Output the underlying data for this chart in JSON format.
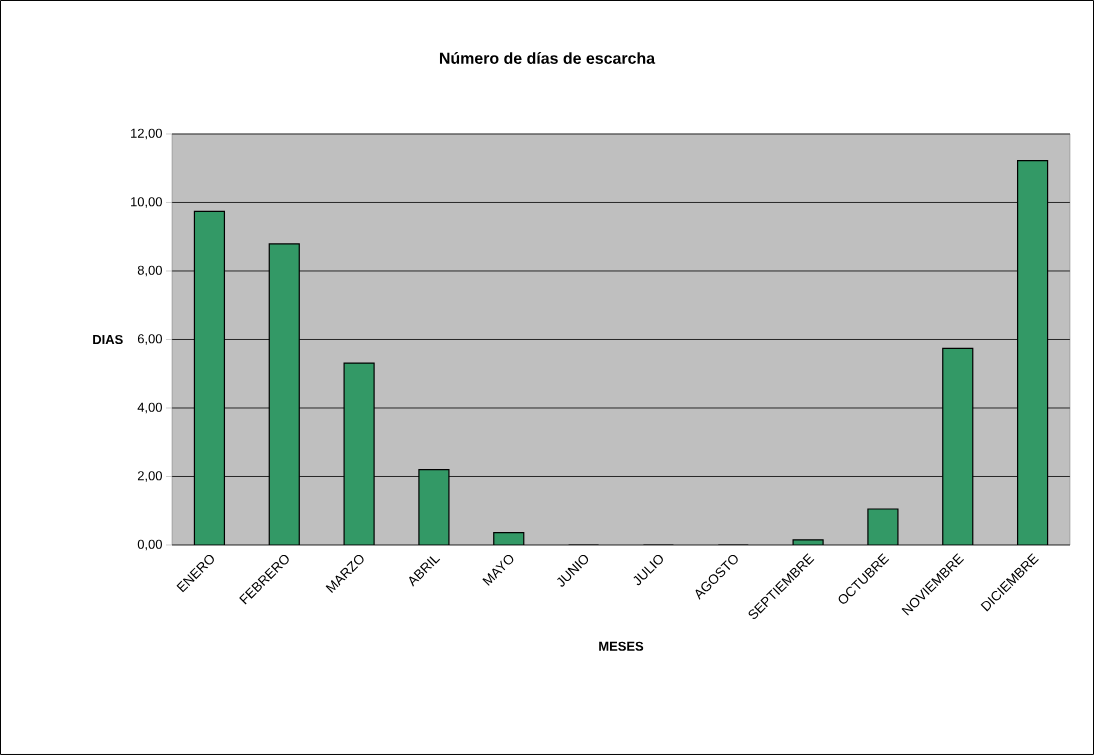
{
  "chart_data": {
    "type": "bar",
    "title": "Número de días de escarcha",
    "xlabel": "MESES",
    "ylabel": "DIAS",
    "categories": [
      "ENERO",
      "FEBRERO",
      "MARZO",
      "ABRIL",
      "MAYO",
      "JUNIO",
      "JULIO",
      "AGOSTO",
      "SEPTIEMBRE",
      "OCTUBRE",
      "NOVIEMBRE",
      "DICIEMBRE"
    ],
    "values": [
      9.74,
      8.79,
      5.31,
      2.2,
      0.36,
      0,
      0,
      0,
      0.15,
      1.05,
      5.74,
      11.22
    ],
    "color": "#339966",
    "ylim": [
      0,
      12
    ],
    "yticks": [
      {
        "value": 0,
        "label": "0,00"
      },
      {
        "value": 2,
        "label": "2,00"
      },
      {
        "value": 4,
        "label": "4,00"
      },
      {
        "value": 6,
        "label": "6,00"
      },
      {
        "value": 8,
        "label": "8,00"
      },
      {
        "value": 10,
        "label": "10,00"
      },
      {
        "value": 12,
        "label": "12,00"
      }
    ],
    "grid": "y"
  }
}
